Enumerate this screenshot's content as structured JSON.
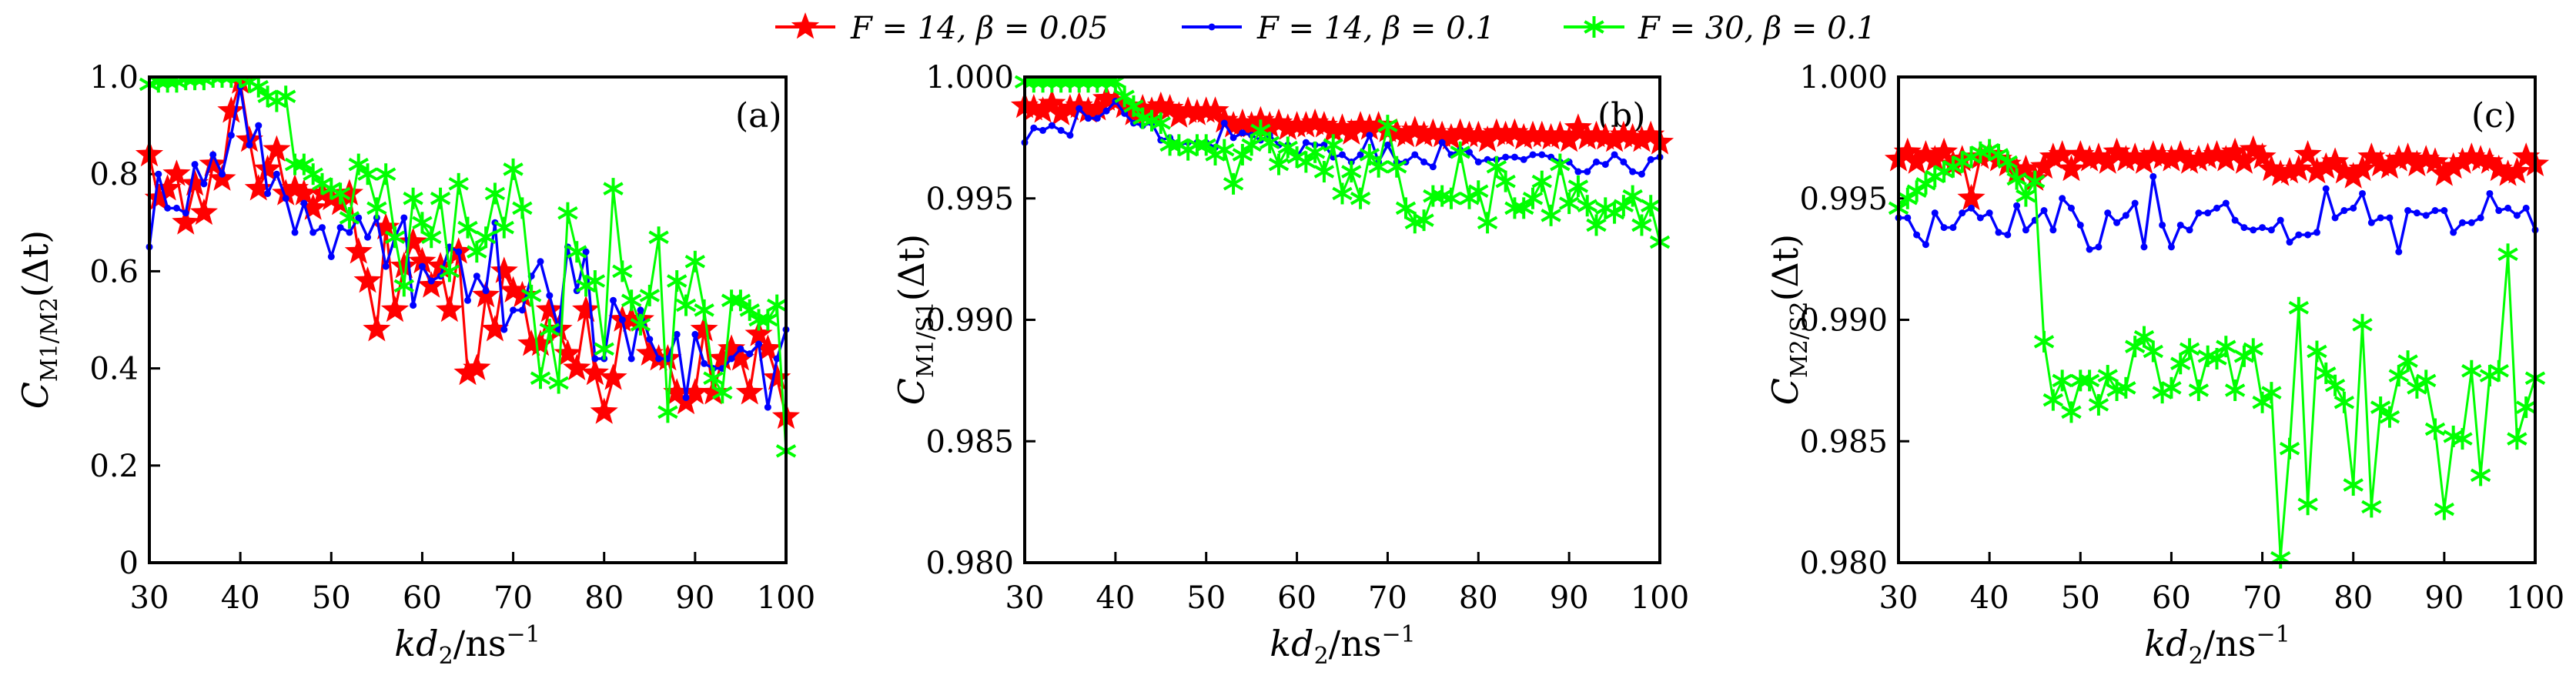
{
  "legend": [
    {
      "label": "F = 14, β = 0.05",
      "color": "#ff0000",
      "marker": "star"
    },
    {
      "label": "F = 14, β = 0.1",
      "color": "#0000ff",
      "marker": "dot"
    },
    {
      "label": "F = 30, β = 0.1",
      "color": "#00ff00",
      "marker": "asterisk"
    }
  ],
  "chart_data": [
    {
      "type": "line",
      "panel": "(a)",
      "xlabel": {
        "main": "kd",
        "sub": "2",
        "unit": "/ns",
        "sup": "−1"
      },
      "ylabel": {
        "main": "C",
        "sub": "M1/M2",
        "tail": "(Δt)"
      },
      "xlim": [
        30,
        100
      ],
      "ylim": [
        0,
        1.0
      ],
      "xticks": [
        "30",
        "40",
        "50",
        "60",
        "70",
        "80",
        "90",
        "100"
      ],
      "yticks": [
        "0",
        "0.2",
        "0.4",
        "0.6",
        "0.8",
        "1.0"
      ],
      "x": {
        "start": 30,
        "end": 100,
        "step": 1
      },
      "series": [
        {
          "name": "F = 14, β = 0.05",
          "values": [
            0.84,
            0.75,
            0.77,
            0.8,
            0.7,
            0.78,
            0.72,
            0.82,
            0.79,
            0.93,
            0.99,
            0.87,
            0.77,
            0.81,
            0.85,
            0.76,
            0.77,
            0.76,
            0.73,
            0.76,
            0.75,
            0.74,
            0.76,
            0.64,
            0.58,
            0.48,
            0.69,
            0.52,
            0.61,
            0.66,
            0.62,
            0.57,
            0.61,
            0.52,
            0.64,
            0.39,
            0.4,
            0.55,
            0.48,
            0.6,
            0.56,
            0.55,
            0.45,
            0.45,
            0.52,
            0.48,
            0.43,
            0.4,
            0.52,
            0.39,
            0.31,
            0.38,
            0.5,
            0.5,
            0.5,
            0.43,
            0.42,
            0.42,
            0.35,
            0.33,
            0.35,
            0.48,
            0.35,
            0.42,
            0.44,
            0.42,
            0.35,
            0.47,
            0.44,
            0.38,
            0.3
          ]
        },
        {
          "name": "F = 14, β = 0.1",
          "values": [
            0.65,
            0.8,
            0.73,
            0.73,
            0.72,
            0.82,
            0.78,
            0.84,
            0.8,
            0.88,
            0.98,
            0.86,
            0.9,
            0.76,
            0.8,
            0.75,
            0.68,
            0.74,
            0.68,
            0.69,
            0.63,
            0.69,
            0.68,
            0.71,
            0.67,
            0.71,
            0.61,
            0.67,
            0.71,
            0.53,
            0.61,
            0.58,
            0.59,
            0.65,
            0.64,
            0.54,
            0.59,
            0.56,
            0.7,
            0.48,
            0.52,
            0.52,
            0.59,
            0.62,
            0.55,
            0.48,
            0.65,
            0.56,
            0.64,
            0.42,
            0.42,
            0.54,
            0.5,
            0.42,
            0.52,
            0.46,
            0.42,
            0.42,
            0.47,
            0.34,
            0.47,
            0.41,
            0.4,
            0.4,
            0.42,
            0.44,
            0.43,
            0.45,
            0.32,
            0.42,
            0.48
          ]
        },
        {
          "name": "F = 30, β = 0.1",
          "values": [
            0.985,
            0.99,
            0.99,
            0.99,
            0.995,
            0.995,
            0.995,
            1.0,
            1.0,
            1.0,
            1.0,
            0.99,
            0.98,
            0.96,
            0.95,
            0.96,
            0.82,
            0.82,
            0.8,
            0.78,
            0.77,
            0.76,
            0.71,
            0.82,
            0.8,
            0.73,
            0.8,
            0.67,
            0.57,
            0.75,
            0.7,
            0.67,
            0.75,
            0.6,
            0.78,
            0.69,
            0.64,
            0.67,
            0.76,
            0.69,
            0.81,
            0.73,
            0.55,
            0.38,
            0.48,
            0.37,
            0.72,
            0.64,
            0.57,
            0.58,
            0.44,
            0.77,
            0.6,
            0.54,
            0.49,
            0.55,
            0.67,
            0.31,
            0.58,
            0.53,
            0.62,
            0.52,
            0.38,
            0.35,
            0.54,
            0.54,
            0.52,
            0.5,
            0.5,
            0.53,
            0.23
          ]
        }
      ]
    },
    {
      "type": "line",
      "panel": "(b)",
      "xlabel": {
        "main": "kd",
        "sub": "2",
        "unit": "/ns",
        "sup": "−1"
      },
      "ylabel": {
        "main": "C",
        "sub": "M1/S1",
        "tail": "(Δt)"
      },
      "xlim": [
        30,
        100
      ],
      "ylim": [
        0.98,
        1.0
      ],
      "xticks": [
        "30",
        "40",
        "50",
        "60",
        "70",
        "80",
        "90",
        "100"
      ],
      "yticks": [
        "0.980",
        "0.985",
        "0.990",
        "0.995",
        "1.000"
      ],
      "x": {
        "start": 30,
        "end": 100,
        "step": 1
      },
      "series": [
        {
          "name": "F = 14, β = 0.05",
          "values": [
            0.9988,
            0.9987,
            0.9986,
            0.9989,
            0.9985,
            0.9987,
            0.9988,
            0.9986,
            0.9987,
            0.9991,
            0.999,
            0.9988,
            0.9985,
            0.9987,
            0.9986,
            0.9988,
            0.9987,
            0.9984,
            0.9986,
            0.9985,
            0.9986,
            0.9986,
            0.9982,
            0.998,
            0.9981,
            0.998,
            0.9982,
            0.998,
            0.9981,
            0.9979,
            0.998,
            0.998,
            0.9981,
            0.998,
            0.9978,
            0.9979,
            0.9977,
            0.998,
            0.9979,
            0.998,
            0.9978,
            0.9977,
            0.9976,
            0.9978,
            0.9976,
            0.9977,
            0.9976,
            0.9975,
            0.9977,
            0.9976,
            0.9976,
            0.9974,
            0.9977,
            0.9976,
            0.9977,
            0.9975,
            0.9976,
            0.9976,
            0.9975,
            0.9976,
            0.9974,
            0.9979,
            0.9975,
            0.9976,
            0.9975,
            0.9974,
            0.9976,
            0.9975,
            0.9974,
            0.9976,
            0.9973
          ]
        },
        {
          "name": "F = 14, β = 0.1",
          "values": [
            0.9973,
            0.9979,
            0.9978,
            0.998,
            0.9978,
            0.9976,
            0.9987,
            0.9983,
            0.9983,
            0.9986,
            0.999,
            0.9985,
            0.9981,
            0.998,
            0.9981,
            0.9974,
            0.9975,
            0.9972,
            0.9973,
            0.9973,
            0.9973,
            0.9971,
            0.9981,
            0.9975,
            0.9977,
            0.9976,
            0.9974,
            0.9976,
            0.9972,
            0.9972,
            0.9967,
            0.9973,
            0.9972,
            0.9972,
            0.9967,
            0.9968,
            0.9965,
            0.9968,
            0.9976,
            0.9965,
            0.9972,
            0.9965,
            0.9965,
            0.9968,
            0.9965,
            0.9963,
            0.9973,
            0.9968,
            0.997,
            0.9969,
            0.9965,
            0.9966,
            0.9966,
            0.9967,
            0.9967,
            0.9966,
            0.9968,
            0.9968,
            0.9967,
            0.9965,
            0.9965,
            0.9961,
            0.9961,
            0.9965,
            0.9964,
            0.9968,
            0.9965,
            0.9961,
            0.996,
            0.9966,
            0.9967
          ]
        },
        {
          "name": "F = 30, β = 0.1",
          "values": [
            0.9998,
            0.9998,
            0.9998,
            0.9998,
            0.9998,
            0.9998,
            0.9998,
            0.9998,
            0.9998,
            0.9998,
            0.9998,
            0.9992,
            0.9988,
            0.9983,
            0.9982,
            0.9981,
            0.9972,
            0.9972,
            0.997,
            0.9972,
            0.9972,
            0.9968,
            0.997,
            0.9956,
            0.9968,
            0.9972,
            0.9978,
            0.9973,
            0.9964,
            0.9971,
            0.9967,
            0.9965,
            0.9969,
            0.9961,
            0.9972,
            0.9952,
            0.9961,
            0.995,
            0.9968,
            0.9963,
            0.998,
            0.9963,
            0.9946,
            0.994,
            0.9941,
            0.9951,
            0.9951,
            0.995,
            0.9969,
            0.995,
            0.9953,
            0.994,
            0.9963,
            0.9957,
            0.9946,
            0.9946,
            0.995,
            0.9957,
            0.9943,
            0.9964,
            0.9948,
            0.9955,
            0.9947,
            0.9939,
            0.9946,
            0.9944,
            0.9947,
            0.9951,
            0.9939,
            0.9947,
            0.9932
          ]
        }
      ]
    },
    {
      "type": "line",
      "panel": "(c)",
      "xlabel": {
        "main": "kd",
        "sub": "2",
        "unit": "/ns",
        "sup": "−1"
      },
      "ylabel": {
        "main": "C",
        "sub": "M2/S2",
        "tail": "(Δt)"
      },
      "xlim": [
        30,
        100
      ],
      "ylim": [
        0.98,
        1.0
      ],
      "xticks": [
        "30",
        "40",
        "50",
        "60",
        "70",
        "80",
        "90",
        "100"
      ],
      "yticks": [
        "0.980",
        "0.985",
        "0.990",
        "0.995",
        "1.000"
      ],
      "x": {
        "start": 30,
        "end": 100,
        "step": 1
      },
      "series": [
        {
          "name": "F = 14, β = 0.05",
          "values": [
            0.9966,
            0.9969,
            0.9965,
            0.9968,
            0.9966,
            0.9969,
            0.9964,
            0.9966,
            0.995,
            0.9967,
            0.9968,
            0.9966,
            0.9964,
            0.9961,
            0.9962,
            0.9958,
            0.9963,
            0.9967,
            0.9968,
            0.9962,
            0.9968,
            0.9966,
            0.9967,
            0.9965,
            0.9969,
            0.9966,
            0.9967,
            0.9965,
            0.9968,
            0.9967,
            0.9966,
            0.9968,
            0.9965,
            0.9966,
            0.9967,
            0.9968,
            0.9966,
            0.9969,
            0.9965,
            0.997,
            0.9967,
            0.9962,
            0.996,
            0.9961,
            0.9962,
            0.9968,
            0.9961,
            0.9963,
            0.9965,
            0.9961,
            0.9959,
            0.9962,
            0.9967,
            0.9964,
            0.9963,
            0.9966,
            0.9967,
            0.9964,
            0.9966,
            0.9965,
            0.996,
            0.9963,
            0.9965,
            0.9967,
            0.9966,
            0.9965,
            0.9962,
            0.996,
            0.9961,
            0.9967,
            0.9964
          ]
        },
        {
          "name": "F = 14, β = 0.1",
          "values": [
            0.9942,
            0.9942,
            0.9935,
            0.9931,
            0.9944,
            0.9938,
            0.9938,
            0.9944,
            0.9946,
            0.9942,
            0.9944,
            0.9936,
            0.9935,
            0.9947,
            0.9937,
            0.9941,
            0.9945,
            0.9937,
            0.995,
            0.9946,
            0.9939,
            0.9929,
            0.993,
            0.9944,
            0.994,
            0.9943,
            0.9948,
            0.993,
            0.9959,
            0.9939,
            0.993,
            0.9939,
            0.9937,
            0.9944,
            0.9944,
            0.9946,
            0.9948,
            0.9941,
            0.9938,
            0.9937,
            0.9938,
            0.9937,
            0.9941,
            0.9932,
            0.9935,
            0.9935,
            0.9936,
            0.9954,
            0.9942,
            0.9945,
            0.9946,
            0.9952,
            0.994,
            0.9942,
            0.9942,
            0.9928,
            0.9945,
            0.9944,
            0.9943,
            0.9945,
            0.9945,
            0.9936,
            0.994,
            0.994,
            0.9942,
            0.9952,
            0.9945,
            0.9946,
            0.9943,
            0.9946,
            0.9937
          ]
        },
        {
          "name": "F = 30, β = 0.1",
          "values": [
            0.9946,
            0.995,
            0.9953,
            0.9956,
            0.9959,
            0.9961,
            0.9963,
            0.9965,
            0.9967,
            0.9969,
            0.997,
            0.9968,
            0.9965,
            0.9958,
            0.9951,
            0.9957,
            0.9891,
            0.9867,
            0.9875,
            0.9862,
            0.9875,
            0.9875,
            0.9865,
            0.9877,
            0.9871,
            0.9872,
            0.9889,
            0.9893,
            0.9887,
            0.987,
            0.9872,
            0.9882,
            0.9888,
            0.9871,
            0.9885,
            0.9884,
            0.9889,
            0.9871,
            0.9885,
            0.9888,
            0.9866,
            0.987,
            0.9802,
            0.9847,
            0.9905,
            0.9824,
            0.9887,
            0.9878,
            0.9873,
            0.9866,
            0.9832,
            0.9898,
            0.9823,
            0.9864,
            0.986,
            0.9877,
            0.9883,
            0.9872,
            0.9875,
            0.9855,
            0.9822,
            0.9852,
            0.9851,
            0.9879,
            0.9836,
            0.9877,
            0.9879,
            0.9927,
            0.9851,
            0.9864,
            0.9876
          ]
        }
      ]
    }
  ]
}
